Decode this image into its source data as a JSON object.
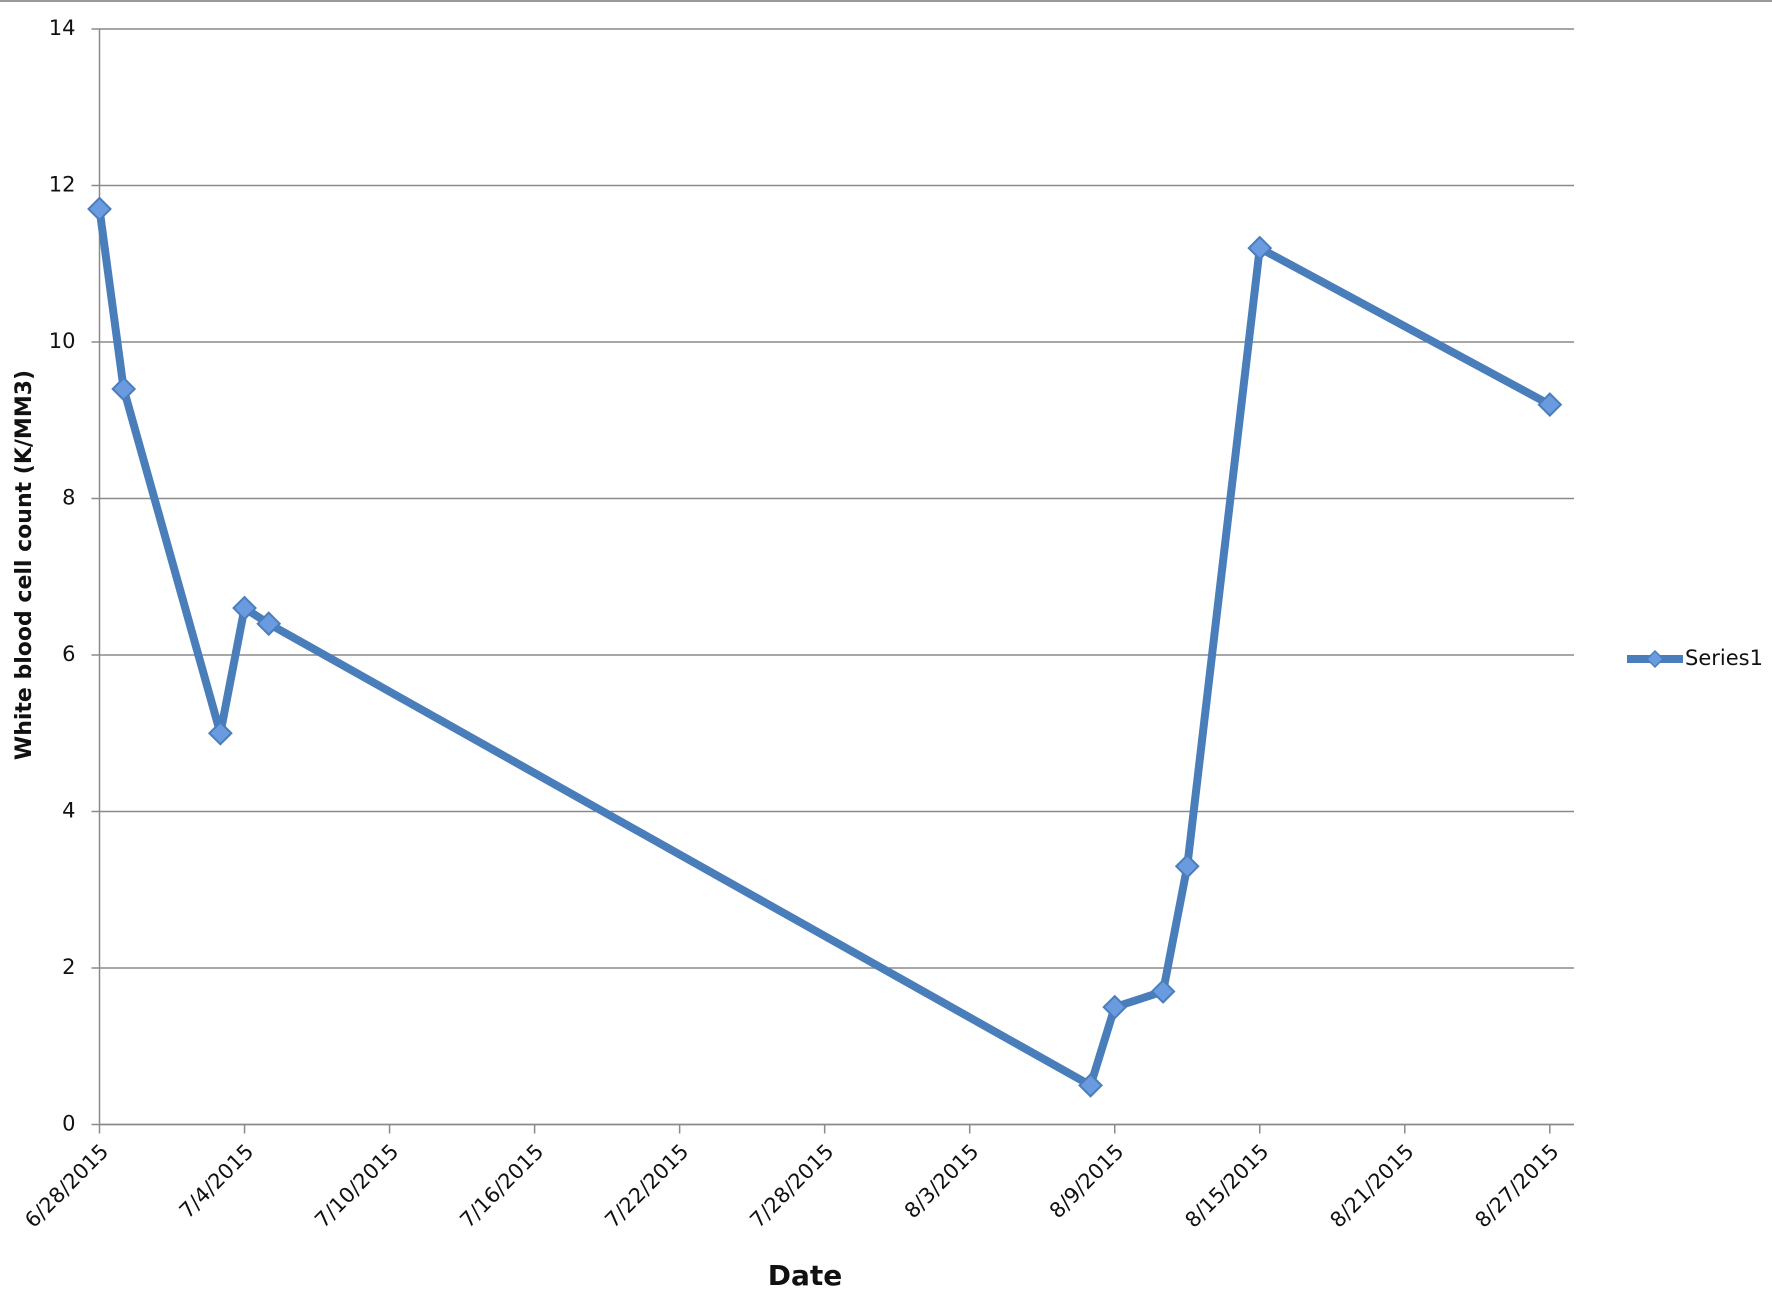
{
  "chart_data": {
    "type": "line",
    "x_label": "Date",
    "y_label": "White blood cell count (K/MM3)",
    "x": [
      "6/28/2015",
      "6/29/2015",
      "7/3/2015",
      "7/4/2015",
      "7/5/2015",
      "8/8/2015",
      "8/9/2015",
      "8/11/2015",
      "8/12/2015",
      "8/15/2015",
      "8/27/2015"
    ],
    "series": [
      {
        "name": "Series1",
        "color": "#4a7ebb",
        "marker_color": "#6a9be0",
        "values": [
          11.7,
          9.4,
          5.0,
          6.6,
          6.4,
          0.5,
          1.5,
          1.7,
          3.3,
          11.2,
          9.2
        ]
      }
    ],
    "xlim": [
      "6/28/2015",
      "8/28/2015"
    ],
    "xticks": [
      "6/28/2015",
      "7/4/2015",
      "7/10/2015",
      "7/16/2015",
      "7/22/2015",
      "7/28/2015",
      "8/3/2015",
      "8/9/2015",
      "8/15/2015",
      "8/21/2015",
      "8/27/2015"
    ],
    "ylim": [
      0,
      14
    ],
    "yticks": [
      0,
      2,
      4,
      6,
      8,
      10,
      12,
      14
    ],
    "grid": true,
    "legend": "right"
  }
}
